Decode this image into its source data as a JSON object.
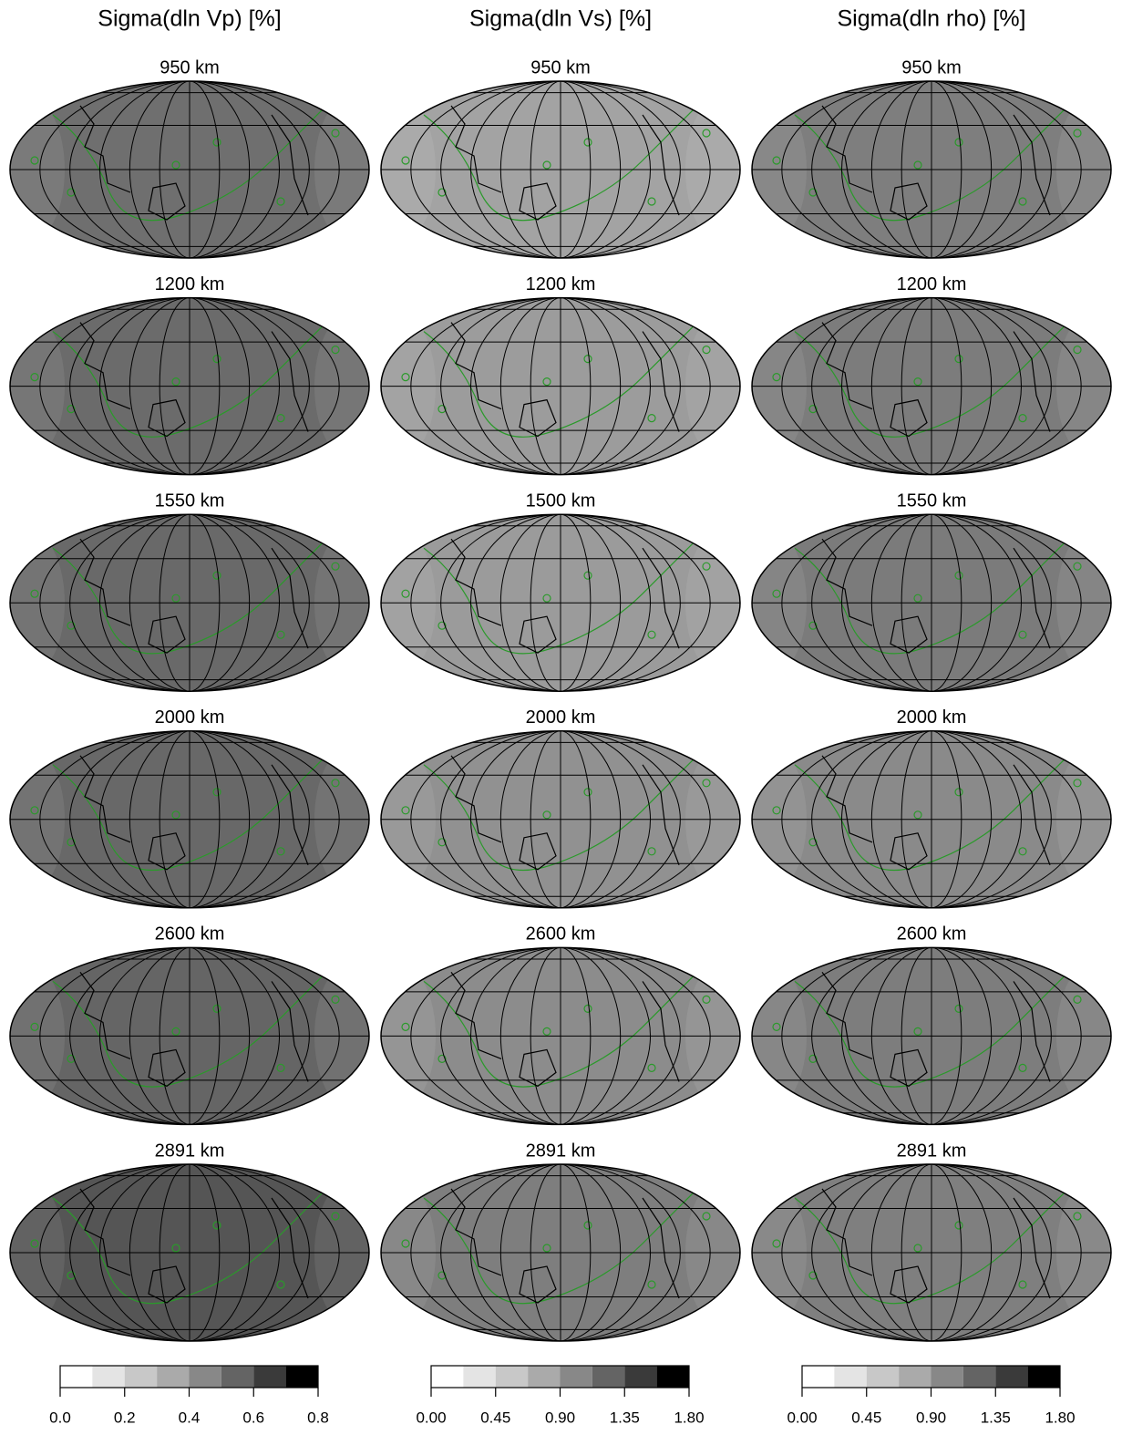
{
  "columns": [
    {
      "title": "Sigma(dln Vp)  [%]",
      "panels": [
        {
          "label": "950 km",
          "fill": "#6f6f6f"
        },
        {
          "label": "1200 km",
          "fill": "#6b6b6b"
        },
        {
          "label": "1550 km",
          "fill": "#696969"
        },
        {
          "label": "2000 km",
          "fill": "#686868"
        },
        {
          "label": "2600 km",
          "fill": "#656565"
        },
        {
          "label": "2891 km",
          "fill": "#555555"
        }
      ],
      "colorbar": {
        "lim": [
          0,
          0.8
        ],
        "colors": [
          "#ffffff",
          "#e4e4e4",
          "#c8c8c8",
          "#aaaaaa",
          "#888888",
          "#646464",
          "#3a3a3a",
          "#000000"
        ],
        "ticks": [
          {
            "value": 0,
            "label": "0.0"
          },
          {
            "value": 0.2,
            "label": "0.2"
          },
          {
            "value": 0.4,
            "label": "0.4"
          },
          {
            "value": 0.6,
            "label": "0.6"
          },
          {
            "value": 0.8,
            "label": "0.8"
          }
        ]
      }
    },
    {
      "title": "Sigma(dln Vs) [%]",
      "panels": [
        {
          "label": "950 km",
          "fill": "#a3a3a3"
        },
        {
          "label": "1200 km",
          "fill": "#9c9c9c"
        },
        {
          "label": "1500 km",
          "fill": "#9b9b9b"
        },
        {
          "label": "2000 km",
          "fill": "#919191"
        },
        {
          "label": "2600 km",
          "fill": "#8c8c8c"
        },
        {
          "label": "2891 km",
          "fill": "#7e7e7e"
        }
      ],
      "colorbar": {
        "lim": [
          0,
          1.8
        ],
        "colors": [
          "#ffffff",
          "#e4e4e4",
          "#c8c8c8",
          "#aaaaaa",
          "#888888",
          "#646464",
          "#3a3a3a",
          "#000000"
        ],
        "ticks": [
          {
            "value": 0,
            "label": "0.00"
          },
          {
            "value": 0.45,
            "label": "0.45"
          },
          {
            "value": 0.9,
            "label": "0.90"
          },
          {
            "value": 1.35,
            "label": "1.35"
          },
          {
            "value": 1.8,
            "label": "1.80"
          }
        ]
      }
    },
    {
      "title": "Sigma(dln rho) [%]",
      "panels": [
        {
          "label": "950 km",
          "fill": "#7e7e7e"
        },
        {
          "label": "1200 km",
          "fill": "#7c7c7c"
        },
        {
          "label": "1550 km",
          "fill": "#7b7b7b"
        },
        {
          "label": "2000 km",
          "fill": "#8a8a8a"
        },
        {
          "label": "2600 km",
          "fill": "#7d7d7d"
        },
        {
          "label": "2891 km",
          "fill": "#7f7f7f"
        }
      ],
      "colorbar": {
        "lim": [
          0,
          1.8
        ],
        "colors": [
          "#ffffff",
          "#e4e4e4",
          "#c8c8c8",
          "#aaaaaa",
          "#888888",
          "#646464",
          "#3a3a3a",
          "#000000"
        ],
        "ticks": [
          {
            "value": 0,
            "label": "0.00"
          },
          {
            "value": 0.45,
            "label": "0.45"
          },
          {
            "value": 0.9,
            "label": "0.90"
          },
          {
            "value": 1.35,
            "label": "1.35"
          },
          {
            "value": 1.8,
            "label": "1.80"
          }
        ]
      }
    }
  ]
}
